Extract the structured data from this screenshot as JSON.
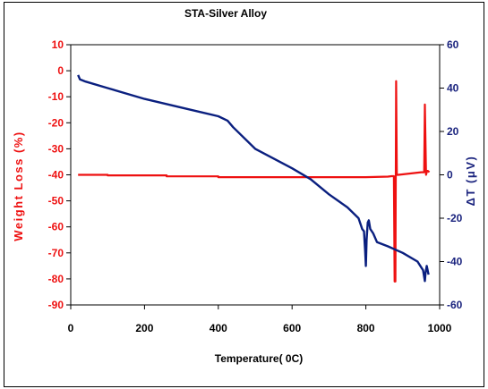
{
  "chart_data": {
    "type": "line",
    "title": "STA-Silver Alloy",
    "xlabel": "Temperature( 0C)",
    "ylabel": "Weight Loss (%)",
    "y2label": "ΔT (μV)",
    "xlim": [
      0,
      1000
    ],
    "ylim": [
      -90,
      10
    ],
    "y2lim": [
      -60,
      60
    ],
    "xticks": [
      0,
      200,
      400,
      600,
      800,
      1000
    ],
    "yticks": [
      10,
      0,
      -10,
      -20,
      -30,
      -40,
      -50,
      -60,
      -70,
      -80,
      -90
    ],
    "y2ticks": [
      60,
      40,
      20,
      0,
      -20,
      -40,
      -60
    ],
    "grid": false,
    "legend": "none",
    "colors": {
      "weight": "#ee1111",
      "dta": "#0a1f7f",
      "axis_left": "#ee1111",
      "axis_right": "#1a237e"
    },
    "series": [
      {
        "axis": "left",
        "x": [
          20,
          100,
          100,
          260,
          260,
          400,
          400,
          600,
          800,
          860,
          870,
          876,
          878,
          880,
          882,
          884,
          888,
          950,
          955,
          958,
          960,
          963,
          966,
          968,
          972
        ],
        "values": [
          -40,
          -40,
          -40.2,
          -40.2,
          -40.6,
          -40.6,
          -40.9,
          -40.9,
          -40.9,
          -40.7,
          -40.5,
          -40.5,
          -81,
          -81,
          -4,
          -40,
          -40,
          -39,
          -39,
          -39,
          -13,
          -40,
          -38.5,
          -38.5,
          -39
        ]
      },
      {
        "axis": "right",
        "x": [
          20,
          25,
          40,
          100,
          200,
          300,
          400,
          425,
          440,
          500,
          600,
          650,
          700,
          750,
          780,
          790,
          795,
          798,
          800,
          802,
          805,
          808,
          812,
          820,
          830,
          860,
          900,
          940,
          955,
          958,
          960,
          962,
          965,
          970
        ],
        "values": [
          46,
          44,
          43,
          40,
          35,
          31,
          27,
          25,
          22,
          12,
          3,
          -2,
          -9,
          -15,
          -20,
          -25,
          -26,
          -35,
          -42,
          -30,
          -22,
          -21,
          -25,
          -27,
          -31,
          -33,
          -36,
          -40,
          -44,
          -47,
          -49,
          -45,
          -42,
          -46
        ]
      }
    ]
  }
}
